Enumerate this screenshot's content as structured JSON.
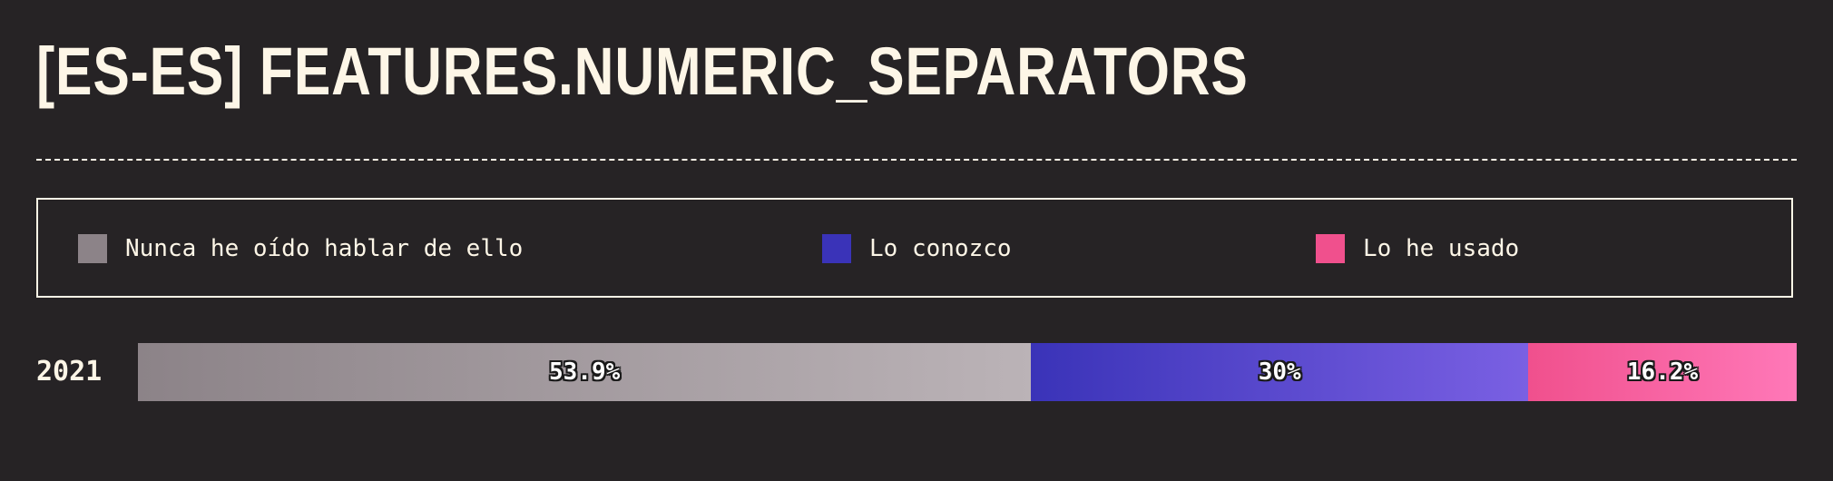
{
  "title": "[ES-ES] FEATURES.NUMERIC_SEPARATORS",
  "legend": [
    {
      "label": "Nunca he oído hablar de ello",
      "color": "#8c8388"
    },
    {
      "label": "Lo conozco",
      "color": "#3a33b8"
    },
    {
      "label": "Lo he usado",
      "color": "#f0508d"
    }
  ],
  "chart_data": {
    "type": "bar",
    "orientation": "horizontal-stacked-100",
    "categories": [
      "2021"
    ],
    "series": [
      {
        "name": "Nunca he oído hablar de ello",
        "values": [
          53.9
        ],
        "label": "53.9%",
        "gradient": [
          "#8c8388",
          "#bbb3b7"
        ]
      },
      {
        "name": "Lo conozco",
        "values": [
          30
        ],
        "label": "30%",
        "gradient": [
          "#3a33b8",
          "#7a60e3"
        ]
      },
      {
        "name": "Lo he usado",
        "values": [
          16.2
        ],
        "label": "16.2%",
        "gradient": [
          "#f0508d",
          "#ff78b8"
        ]
      }
    ],
    "legend_position": "top"
  }
}
